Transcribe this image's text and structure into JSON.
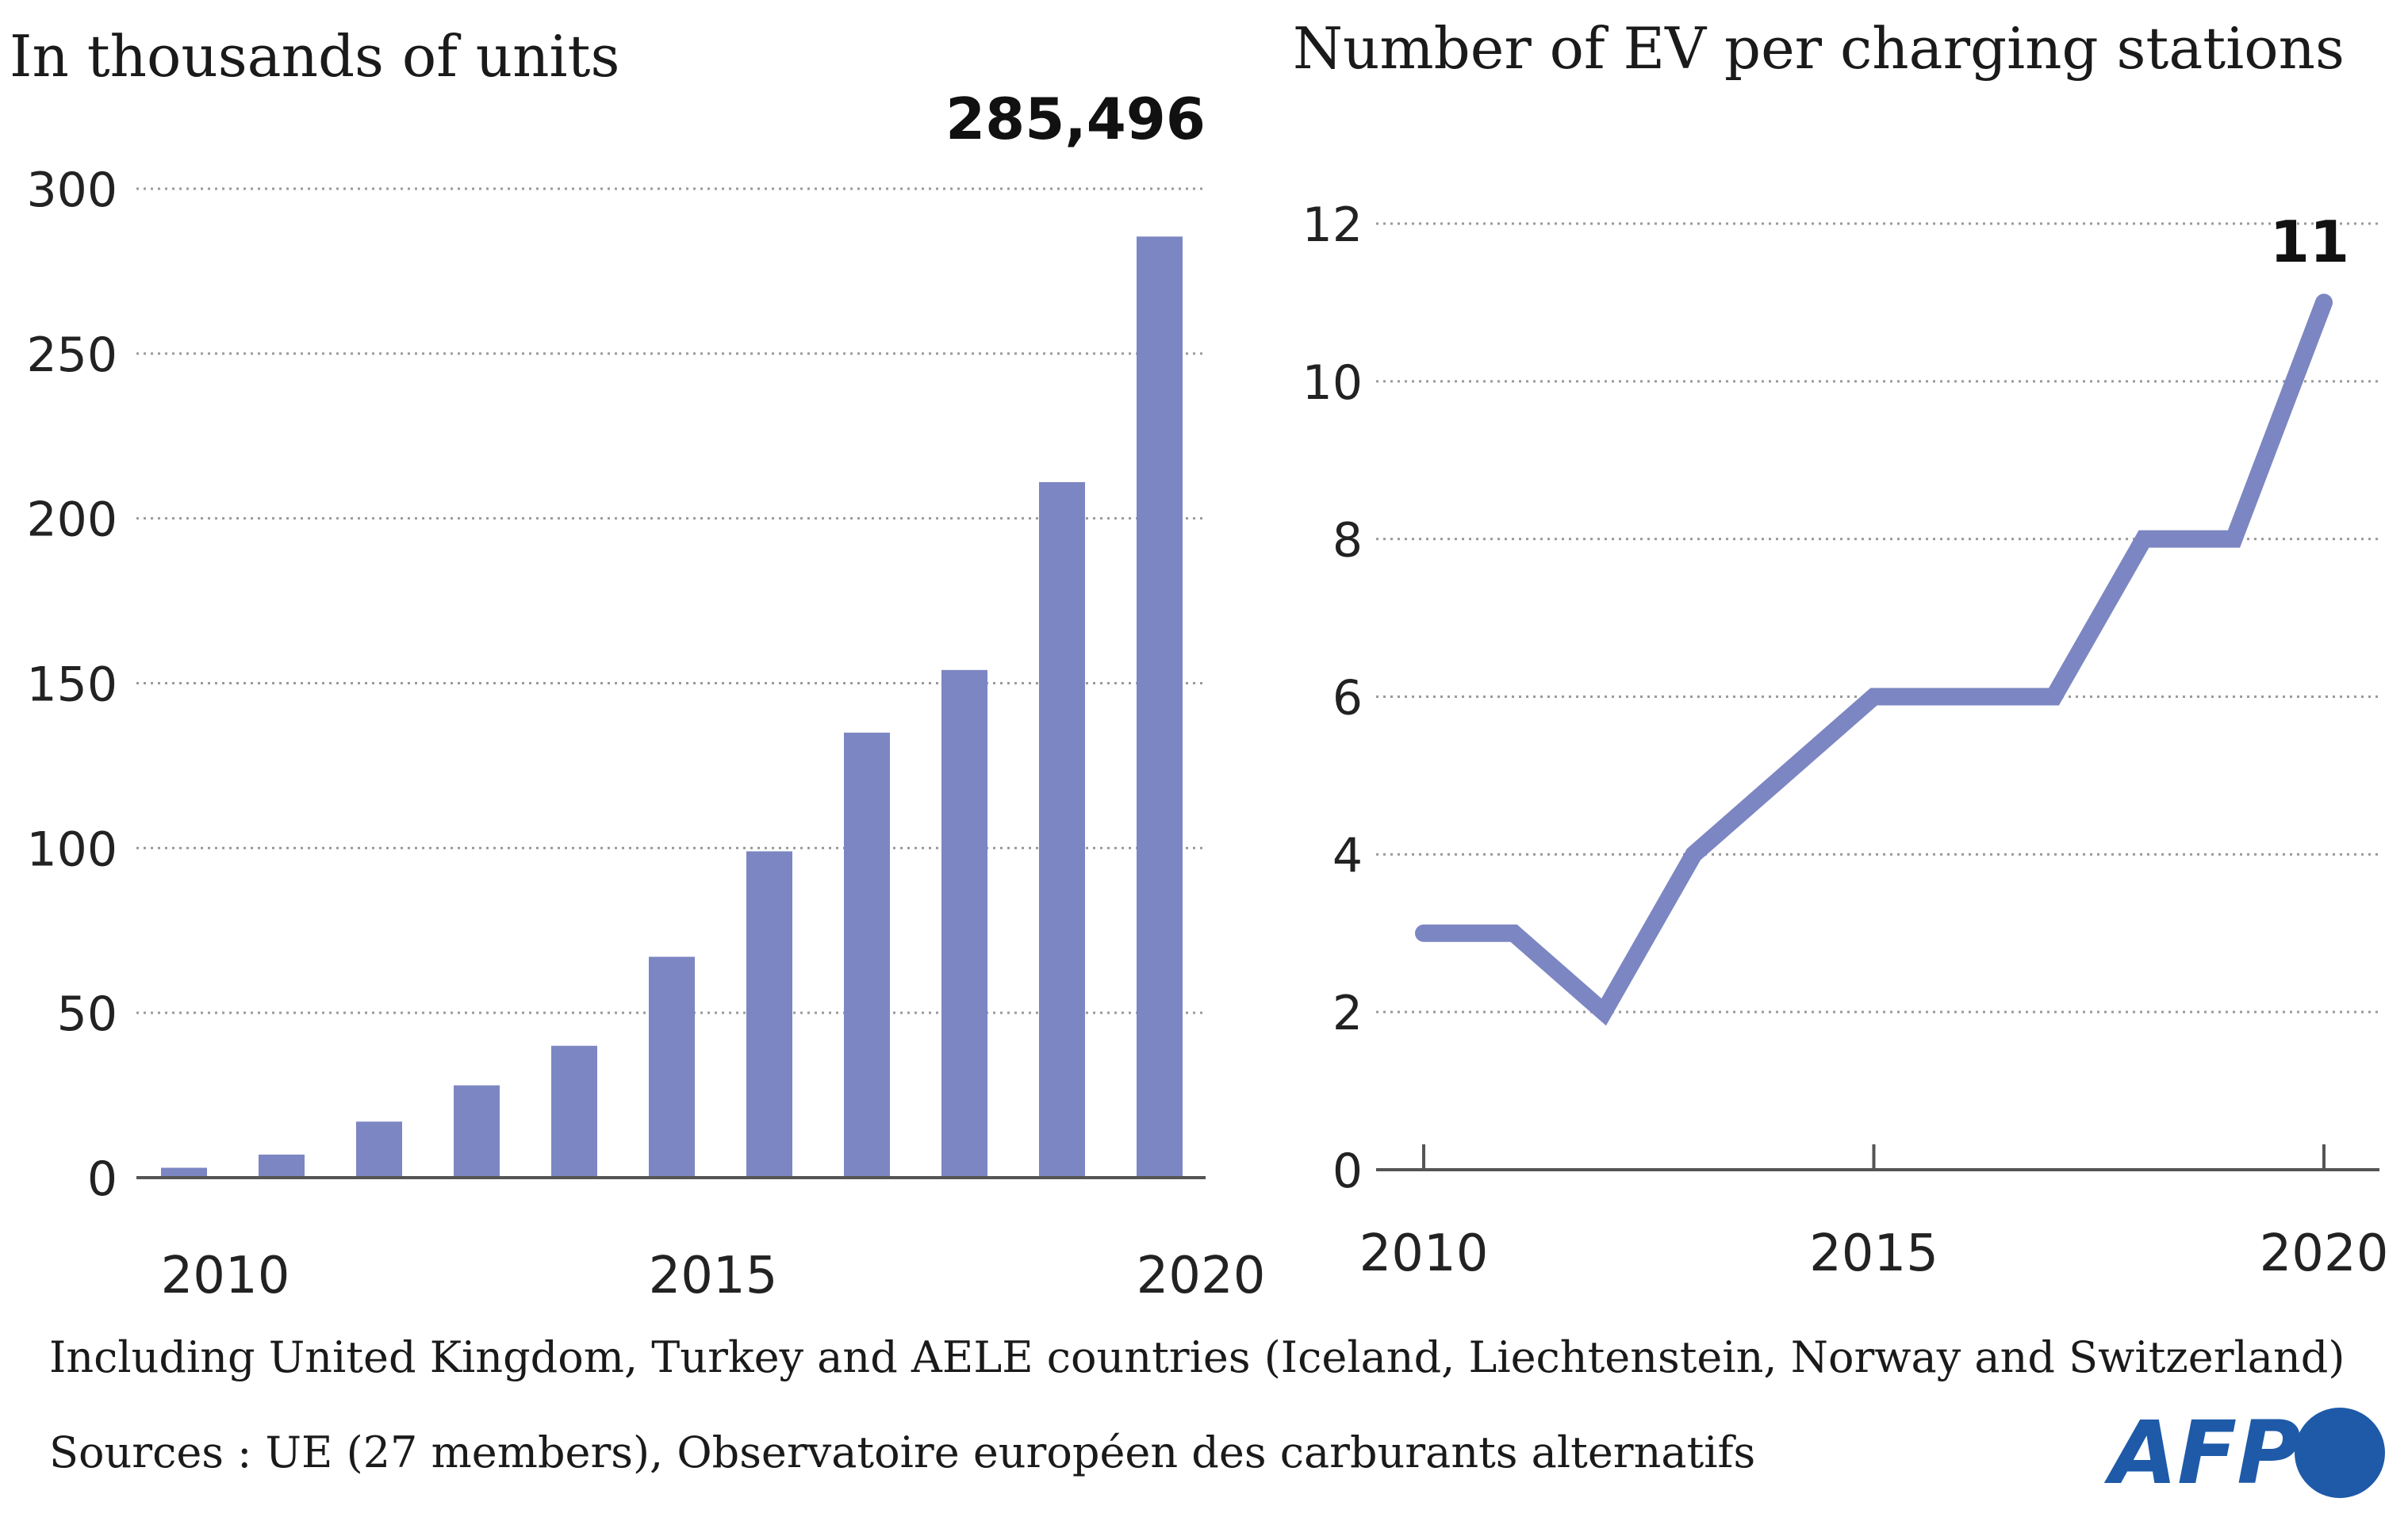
{
  "chart_data": [
    {
      "type": "bar",
      "title": "In thousands of units",
      "categories": [
        "2010",
        "2011",
        "2012",
        "2013",
        "2014",
        "2015",
        "2016",
        "2017",
        "2018",
        "2019",
        "2020"
      ],
      "values": [
        3,
        7,
        17,
        28,
        40,
        67,
        99,
        135,
        154,
        211,
        285.496
      ],
      "x_tick_labels": [
        "2010",
        "2015",
        "2020"
      ],
      "y_ticks": [
        0,
        50,
        100,
        150,
        200,
        250,
        300
      ],
      "ylim": [
        0,
        300
      ],
      "grid": true,
      "highlight_label": "285,496",
      "color": "#7c86c2"
    },
    {
      "type": "line",
      "title": "Number of EV per charging stations",
      "x": [
        2010,
        2011,
        2012,
        2013,
        2014,
        2015,
        2016,
        2017,
        2018,
        2019,
        2020
      ],
      "y": [
        3,
        3,
        2,
        4,
        5,
        6,
        6,
        6,
        8,
        8,
        11
      ],
      "x_tick_labels": [
        "2010",
        "2015",
        "2020"
      ],
      "y_ticks": [
        0,
        2,
        4,
        6,
        8,
        10,
        12
      ],
      "ylim": [
        0,
        12
      ],
      "grid": true,
      "highlight_label": "11",
      "color": "#7c86c2"
    }
  ],
  "footnotes": {
    "note": "Including United Kingdom, Turkey and AELE countries (Iceland, Liechtenstein, Norway and Switzerland)",
    "sources": "Sources : UE (27 members), Observatoire européen des carburants alternatifs"
  },
  "logo": {
    "text": "AFP",
    "color": "#1e5aa8"
  }
}
